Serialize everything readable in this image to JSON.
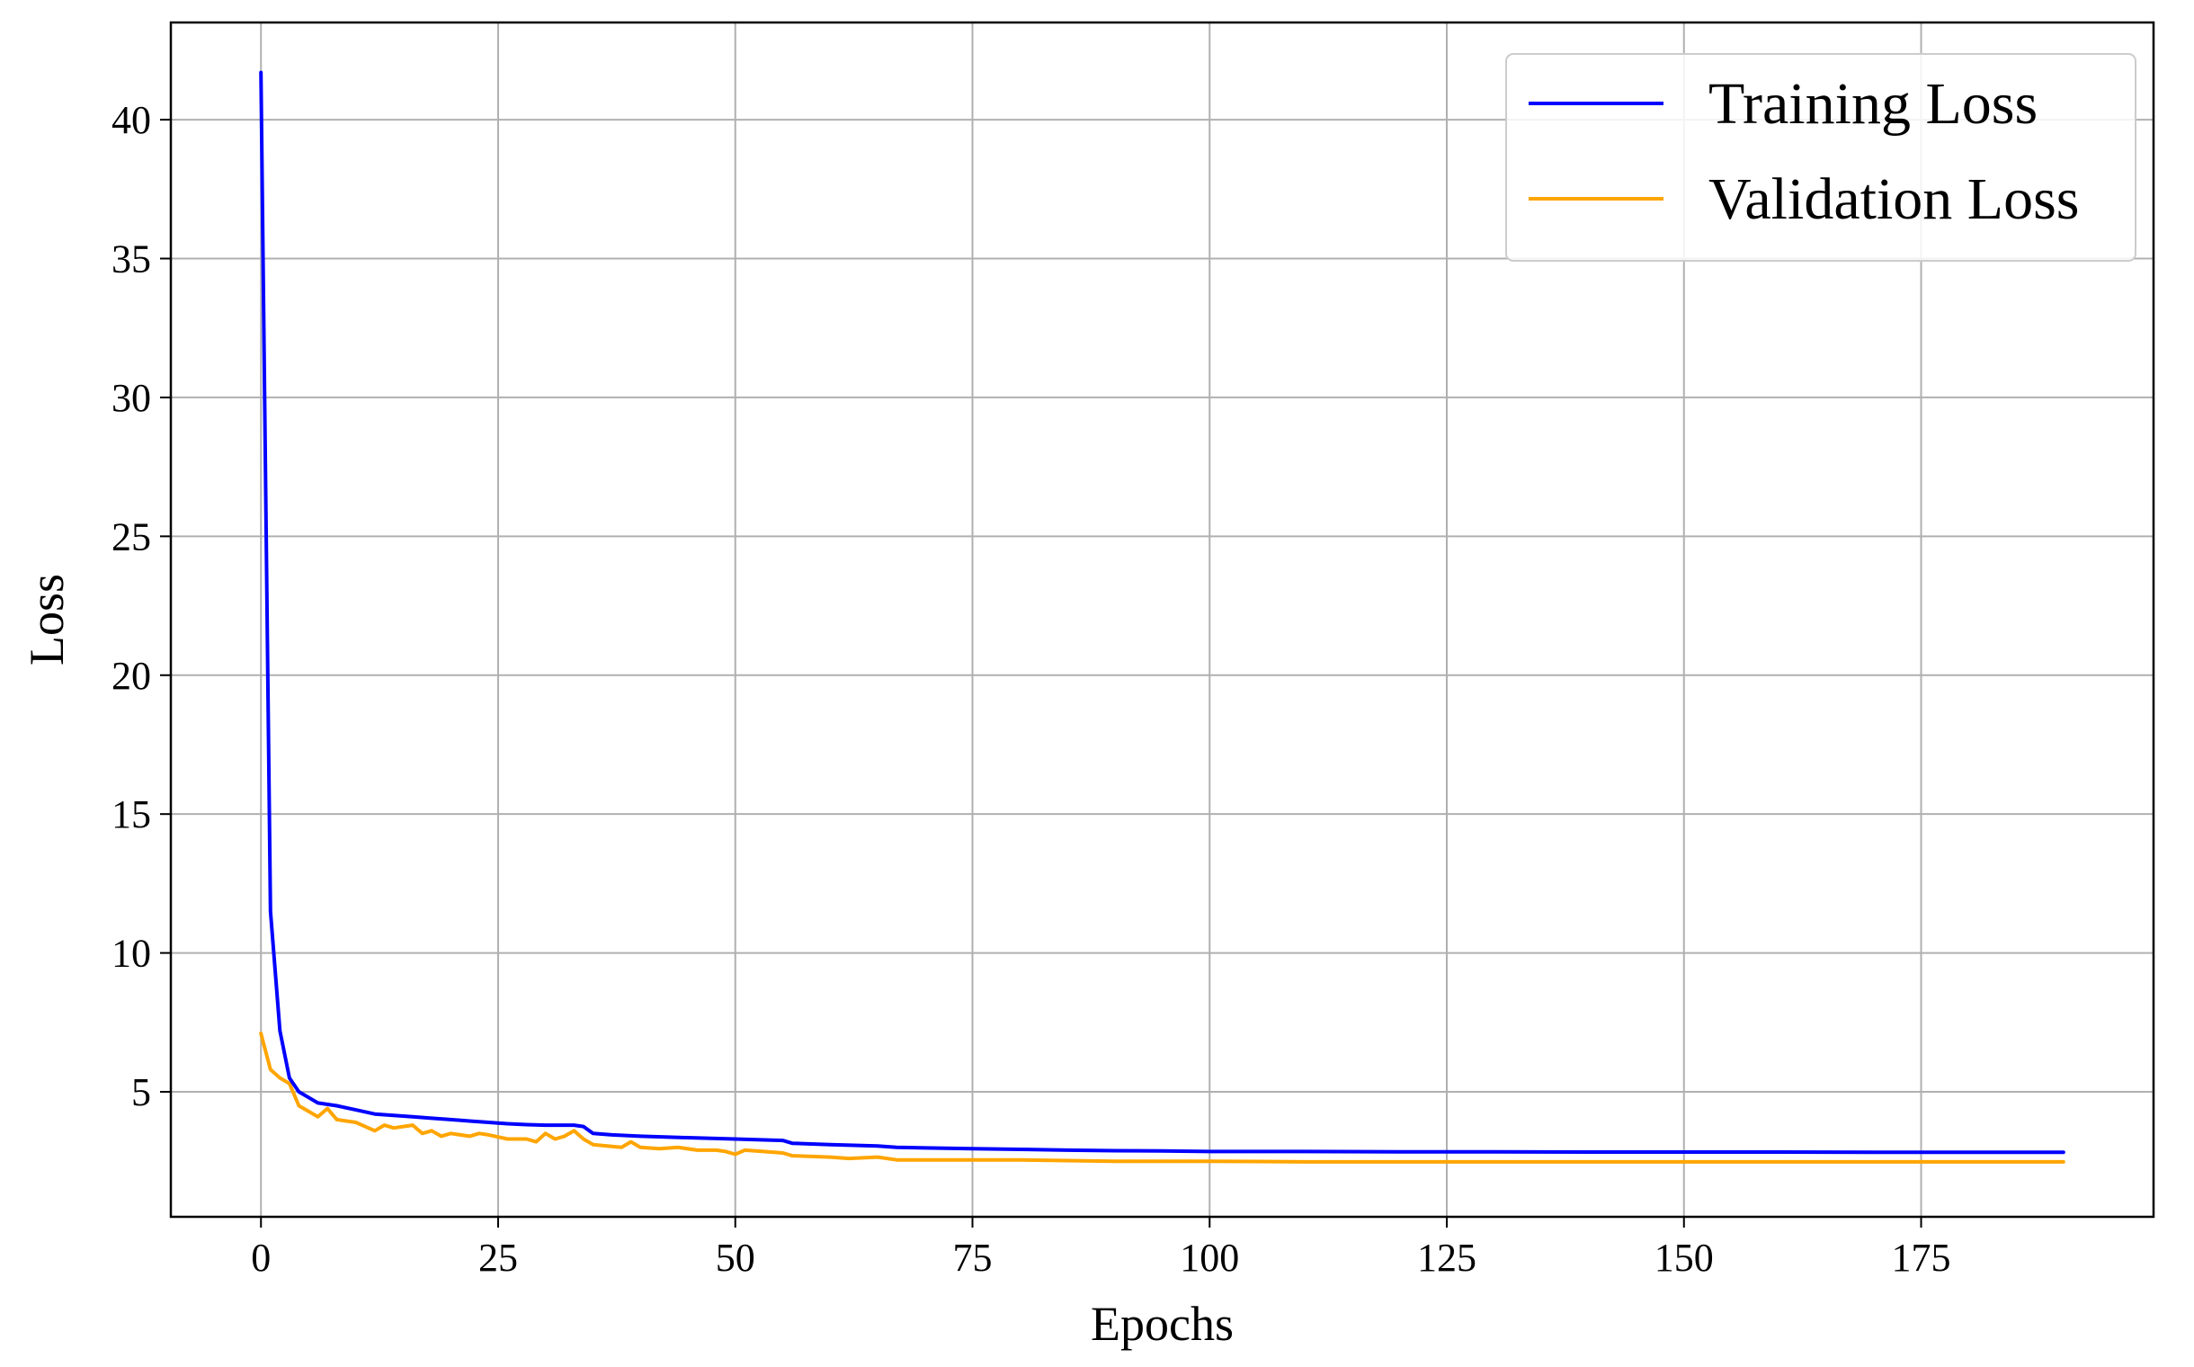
{
  "chart_data": {
    "type": "line",
    "title": "",
    "xlabel": "Epochs",
    "ylabel": "Loss",
    "xlim": [
      -9.5,
      199.5
    ],
    "ylim": [
      0.5,
      43.5
    ],
    "xticks": [
      0,
      25,
      50,
      75,
      100,
      125,
      150,
      175
    ],
    "yticks": [
      5,
      10,
      15,
      20,
      25,
      30,
      35,
      40
    ],
    "grid": true,
    "legend": {
      "position": "top-right",
      "entries": [
        "Training Loss",
        "Validation Loss"
      ]
    },
    "colors": {
      "Training Loss": "#0000ff",
      "Validation Loss": "#ffa500"
    },
    "series": [
      {
        "name": "Training Loss",
        "x": [
          0,
          1,
          2,
          3,
          4,
          5,
          6,
          8,
          10,
          12,
          14,
          16,
          18,
          20,
          22,
          24,
          26,
          28,
          30,
          32,
          33,
          34,
          35,
          37,
          40,
          45,
          50,
          55,
          56,
          60,
          65,
          67,
          70,
          75,
          80,
          85,
          90,
          95,
          100,
          110,
          120,
          130,
          140,
          150,
          160,
          170,
          180,
          185,
          190
        ],
        "y": [
          41.7,
          11.5,
          7.2,
          5.5,
          5.0,
          4.8,
          4.6,
          4.5,
          4.35,
          4.2,
          4.15,
          4.1,
          4.05,
          4.0,
          3.95,
          3.9,
          3.85,
          3.82,
          3.8,
          3.8,
          3.8,
          3.75,
          3.5,
          3.45,
          3.4,
          3.35,
          3.3,
          3.25,
          3.15,
          3.1,
          3.05,
          3.0,
          2.98,
          2.95,
          2.93,
          2.9,
          2.88,
          2.87,
          2.85,
          2.85,
          2.84,
          2.84,
          2.83,
          2.83,
          2.83,
          2.82,
          2.82,
          2.82,
          2.82
        ]
      },
      {
        "name": "Validation Loss",
        "x": [
          0,
          1,
          2,
          3,
          4,
          5,
          6,
          7,
          8,
          10,
          12,
          13,
          14,
          16,
          17,
          18,
          19,
          20,
          22,
          23,
          24,
          26,
          28,
          29,
          30,
          31,
          32,
          33,
          34,
          35,
          38,
          39,
          40,
          42,
          44,
          46,
          48,
          49,
          50,
          51,
          53,
          55,
          56,
          60,
          62,
          65,
          67,
          70,
          75,
          80,
          90,
          100,
          110,
          120,
          130,
          140,
          150,
          160,
          170,
          180,
          190
        ],
        "y": [
          7.1,
          5.8,
          5.5,
          5.3,
          4.5,
          4.3,
          4.1,
          4.4,
          4.0,
          3.9,
          3.6,
          3.8,
          3.7,
          3.8,
          3.5,
          3.6,
          3.4,
          3.5,
          3.4,
          3.5,
          3.45,
          3.3,
          3.3,
          3.2,
          3.5,
          3.3,
          3.4,
          3.6,
          3.3,
          3.1,
          3.0,
          3.2,
          3.0,
          2.95,
          3.0,
          2.9,
          2.9,
          2.85,
          2.75,
          2.9,
          2.85,
          2.8,
          2.7,
          2.65,
          2.6,
          2.65,
          2.55,
          2.55,
          2.55,
          2.55,
          2.5,
          2.5,
          2.48,
          2.48,
          2.48,
          2.48,
          2.48,
          2.48,
          2.48,
          2.48,
          2.48
        ]
      }
    ]
  }
}
